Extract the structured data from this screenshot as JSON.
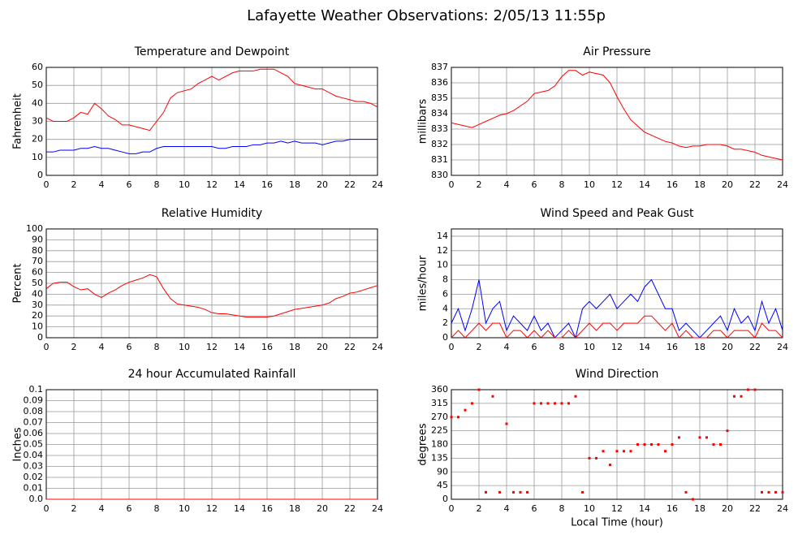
{
  "title": "Lafayette Weather Observations: 2/05/13 11:55p",
  "chart_data": [
    {
      "type": "line",
      "title": "Temperature and Dewpoint",
      "ylabel": "Fahrenheit",
      "xlim": [
        0,
        24
      ],
      "xticks": [
        0,
        2,
        4,
        6,
        8,
        10,
        12,
        14,
        16,
        18,
        20,
        22,
        24
      ],
      "ylim": [
        0,
        60
      ],
      "yticks": [
        0,
        10,
        20,
        30,
        40,
        50,
        60
      ],
      "grid": true,
      "x": [
        0,
        0.5,
        1,
        1.5,
        2,
        2.5,
        3,
        3.5,
        4,
        4.5,
        5,
        5.5,
        6,
        6.5,
        7,
        7.5,
        8,
        8.5,
        9,
        9.5,
        10,
        10.5,
        11,
        11.5,
        12,
        12.5,
        13,
        13.5,
        14,
        14.5,
        15,
        15.5,
        16,
        16.5,
        17,
        17.5,
        18,
        18.5,
        19,
        19.5,
        20,
        20.5,
        21,
        21.5,
        22,
        22.5,
        23,
        23.5,
        24
      ],
      "series": [
        {
          "color": "#ff0000",
          "values": [
            32,
            30,
            30,
            30,
            32,
            35,
            34,
            40,
            37,
            33,
            31,
            28,
            28,
            27,
            26,
            25,
            30,
            35,
            43,
            46,
            47,
            48,
            51,
            53,
            55,
            53,
            55,
            57,
            58,
            58,
            58,
            59,
            59,
            59,
            57,
            55,
            51,
            50,
            49,
            48,
            48,
            46,
            44,
            43,
            42,
            41,
            41,
            40,
            38
          ]
        },
        {
          "color": "#0000ff",
          "values": [
            13,
            13,
            14,
            14,
            14,
            15,
            15,
            16,
            15,
            15,
            14,
            13,
            12,
            12,
            13,
            13,
            15,
            16,
            16,
            16,
            16,
            16,
            16,
            16,
            16,
            15,
            15,
            16,
            16,
            16,
            17,
            17,
            18,
            18,
            19,
            18,
            19,
            18,
            18,
            18,
            17,
            18,
            19,
            19,
            20,
            20,
            20,
            20,
            20
          ]
        }
      ]
    },
    {
      "type": "line",
      "title": "Air Pressure",
      "ylabel": "millibars",
      "xlim": [
        0,
        24
      ],
      "xticks": [
        0,
        2,
        4,
        6,
        8,
        10,
        12,
        14,
        16,
        18,
        20,
        22,
        24
      ],
      "ylim": [
        830,
        837
      ],
      "yticks": [
        830,
        831,
        832,
        833,
        834,
        835,
        836,
        837
      ],
      "grid": true,
      "x": [
        0,
        0.5,
        1,
        1.5,
        2,
        2.5,
        3,
        3.5,
        4,
        4.5,
        5,
        5.5,
        6,
        6.5,
        7,
        7.5,
        8,
        8.5,
        9,
        9.5,
        10,
        10.5,
        11,
        11.5,
        12,
        12.5,
        13,
        13.5,
        14,
        14.5,
        15,
        15.5,
        16,
        16.5,
        17,
        17.5,
        18,
        18.5,
        19,
        19.5,
        20,
        20.5,
        21,
        21.5,
        22,
        22.5,
        23,
        23.5,
        24
      ],
      "series": [
        {
          "color": "#ff0000",
          "values": [
            833.4,
            833.3,
            833.2,
            833.1,
            833.3,
            833.5,
            833.7,
            833.9,
            834,
            834.2,
            834.5,
            834.8,
            835.3,
            835.4,
            835.5,
            835.8,
            836.4,
            836.8,
            836.8,
            836.5,
            836.7,
            836.6,
            836.5,
            836,
            835.1,
            834.3,
            833.6,
            833.2,
            832.8,
            832.6,
            832.4,
            832.2,
            832.1,
            831.9,
            831.8,
            831.9,
            831.9,
            832,
            832,
            832,
            831.9,
            831.7,
            831.7,
            831.6,
            831.5,
            831.3,
            831.2,
            831.1,
            831
          ]
        }
      ]
    },
    {
      "type": "line",
      "title": "Relative Humidity",
      "ylabel": "Percent",
      "xlim": [
        0,
        24
      ],
      "xticks": [
        0,
        2,
        4,
        6,
        8,
        10,
        12,
        14,
        16,
        18,
        20,
        22,
        24
      ],
      "ylim": [
        0,
        100
      ],
      "yticks": [
        0,
        10,
        20,
        30,
        40,
        50,
        60,
        70,
        80,
        90,
        100
      ],
      "grid": true,
      "x": [
        0,
        0.5,
        1,
        1.5,
        2,
        2.5,
        3,
        3.5,
        4,
        4.5,
        5,
        5.5,
        6,
        6.5,
        7,
        7.5,
        8,
        8.5,
        9,
        9.5,
        10,
        10.5,
        11,
        11.5,
        12,
        12.5,
        13,
        13.5,
        14,
        14.5,
        15,
        15.5,
        16,
        16.5,
        17,
        17.5,
        18,
        18.5,
        19,
        19.5,
        20,
        20.5,
        21,
        21.5,
        22,
        22.5,
        23,
        23.5,
        24
      ],
      "series": [
        {
          "color": "#ff0000",
          "values": [
            45,
            50,
            51,
            51,
            47,
            44,
            45,
            40,
            37,
            41,
            44,
            48,
            51,
            53,
            55,
            58,
            56,
            45,
            36,
            31,
            30,
            29,
            28,
            26,
            23,
            22,
            22,
            21,
            20,
            19,
            19,
            19,
            19,
            20,
            22,
            24,
            26,
            27,
            28,
            29,
            30,
            32,
            36,
            38,
            41,
            42,
            44,
            46,
            48
          ]
        }
      ]
    },
    {
      "type": "line",
      "title": "Wind Speed and Peak Gust",
      "ylabel": "miles/hour",
      "xlim": [
        0,
        24
      ],
      "xticks": [
        0,
        2,
        4,
        6,
        8,
        10,
        12,
        14,
        16,
        18,
        20,
        22,
        24
      ],
      "ylim": [
        0,
        15
      ],
      "yticks": [
        0,
        2,
        4,
        6,
        8,
        10,
        12,
        14
      ],
      "grid": true,
      "x": [
        0,
        0.5,
        1,
        1.5,
        2,
        2.5,
        3,
        3.5,
        4,
        4.5,
        5,
        5.5,
        6,
        6.5,
        7,
        7.5,
        8,
        8.5,
        9,
        9.5,
        10,
        10.5,
        11,
        11.5,
        12,
        12.5,
        13,
        13.5,
        14,
        14.5,
        15,
        15.5,
        16,
        16.5,
        17,
        17.5,
        18,
        18.5,
        19,
        19.5,
        20,
        20.5,
        21,
        21.5,
        22,
        22.5,
        23,
        23.5,
        24
      ],
      "series": [
        {
          "color": "#0000ff",
          "values": [
            2,
            4,
            1,
            4,
            8,
            2,
            4,
            5,
            1,
            3,
            2,
            1,
            3,
            1,
            2,
            0,
            1,
            2,
            0,
            4,
            5,
            4,
            5,
            6,
            4,
            5,
            6,
            5,
            7,
            8,
            6,
            4,
            4,
            1,
            2,
            1,
            0,
            1,
            2,
            3,
            1,
            4,
            2,
            3,
            1,
            5,
            2,
            4,
            1
          ]
        },
        {
          "color": "#ff0000",
          "values": [
            0,
            1,
            0,
            1,
            2,
            1,
            2,
            2,
            0,
            1,
            1,
            0,
            1,
            0,
            1,
            0,
            0,
            1,
            0,
            1,
            2,
            1,
            2,
            2,
            1,
            2,
            2,
            2,
            3,
            3,
            2,
            1,
            2,
            0,
            1,
            0,
            0,
            0,
            1,
            1,
            0,
            1,
            1,
            1,
            0,
            2,
            1,
            1,
            0
          ]
        }
      ]
    },
    {
      "type": "line",
      "title": "24 hour Accumulated Rainfall",
      "ylabel": "Inches",
      "xlim": [
        0,
        24
      ],
      "xticks": [
        0,
        2,
        4,
        6,
        8,
        10,
        12,
        14,
        16,
        18,
        20,
        22,
        24
      ],
      "ylim": [
        0,
        0.1
      ],
      "yticks": [
        {
          "value": 0,
          "label": "0.0"
        },
        0.01,
        0.02,
        0.03,
        0.04,
        0.05,
        0.06,
        0.07,
        0.08,
        0.09,
        0.1
      ],
      "grid": true,
      "x": [
        0,
        24
      ],
      "series": [
        {
          "color": "#ff0000",
          "values": [
            0,
            0
          ]
        }
      ]
    },
    {
      "type": "scatter",
      "title": "Wind Direction",
      "ylabel": "degrees",
      "xlabel": "Local Time (hour)",
      "xlim": [
        0,
        24
      ],
      "xticks": [
        0,
        2,
        4,
        6,
        8,
        10,
        12,
        14,
        16,
        18,
        20,
        22,
        24
      ],
      "ylim": [
        0,
        360
      ],
      "yticks": [
        0,
        45,
        90,
        135,
        180,
        225,
        270,
        315,
        360
      ],
      "grid": true,
      "x": [
        0,
        0.5,
        1,
        1.5,
        2,
        2.5,
        3,
        3.5,
        4,
        4.5,
        5,
        5.5,
        6,
        6.5,
        7,
        7.5,
        8,
        8.5,
        9,
        9.5,
        10,
        10.5,
        11,
        11.5,
        12,
        12.5,
        13,
        13.5,
        14,
        14.5,
        15,
        15.5,
        16,
        16.5,
        17,
        17.5,
        18,
        18.5,
        19,
        19.5,
        20,
        20.5,
        21,
        21.5,
        22,
        22.5,
        23,
        23.5,
        24
      ],
      "series": [
        {
          "color": "#ff0000",
          "values": [
            270,
            270,
            293,
            315,
            360,
            23,
            338,
            23,
            248,
            23,
            23,
            23,
            315,
            315,
            315,
            315,
            315,
            315,
            338,
            23,
            135,
            135,
            158,
            113,
            158,
            158,
            158,
            180,
            180,
            180,
            180,
            158,
            180,
            203,
            23,
            0,
            203,
            203,
            180,
            180,
            225,
            338,
            338,
            360,
            360,
            23,
            23,
            23,
            23
          ]
        }
      ]
    }
  ]
}
